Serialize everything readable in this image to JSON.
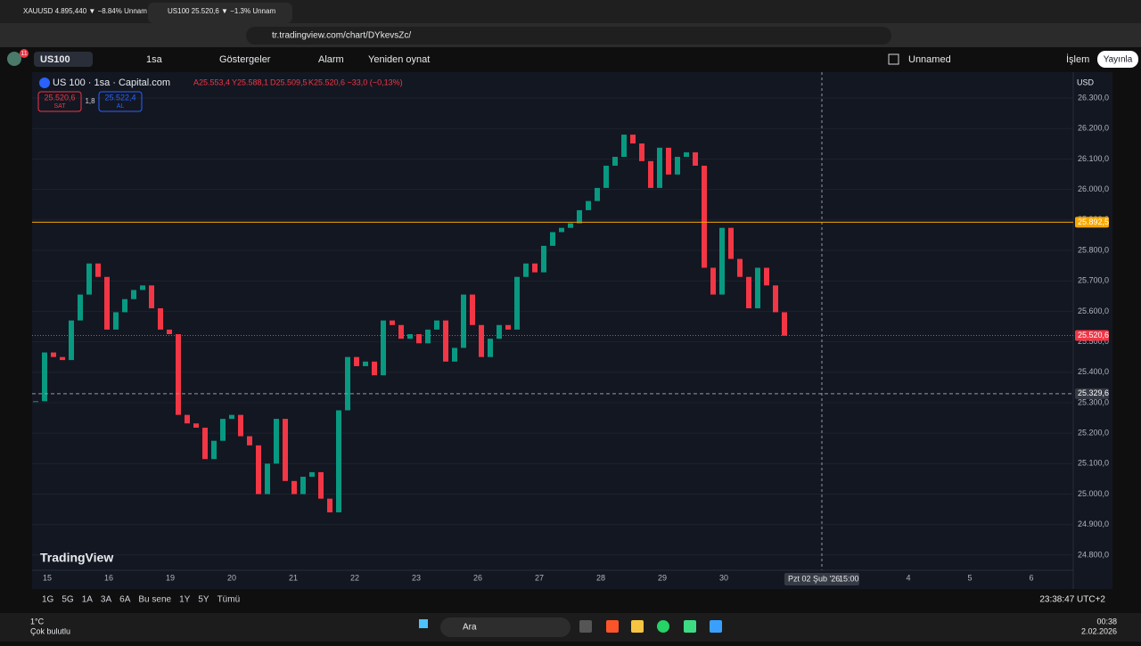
{
  "browser": {
    "tabs": [
      "XAUUSD 4.895,440 ▼ −8.84% Unnam",
      "US100 25.520,6 ▼ −1.3% Unnam"
    ],
    "url": "tr.tradingview.com/chart/DYkevsZc/"
  },
  "toolbar": {
    "badge": "11",
    "symbol": "US100",
    "interval": "1sa",
    "indicators": "Göstergeler",
    "alert": "Alarm",
    "replay": "Yeniden oynat",
    "layout": "Unnamed",
    "trade": "İşlem",
    "publish": "Yayınla"
  },
  "chart": {
    "type": "candlestick",
    "legend": "US 100 · 1sa · Capital.com",
    "ohlc": [
      "A25.553,4",
      "Y25.588,1",
      "D25.509,5",
      "K25.520,6 −33,0 (−0,13%)"
    ],
    "sell": {
      "price": "25.520,6",
      "label": "SAT"
    },
    "spread": "1,8",
    "buy": {
      "price": "25.522,4",
      "label": "AL"
    },
    "currency": "USD",
    "watermark": "TradingView",
    "ylim": [
      24750,
      26385
    ],
    "yticks": [
      {
        "value": 26300,
        "label": "26.300,0"
      },
      {
        "value": 26200,
        "label": "26.200,0"
      },
      {
        "value": 26100,
        "label": "26.100,0"
      },
      {
        "value": 26000,
        "label": "26.000,0"
      },
      {
        "value": 25900,
        "label": "25.900,0"
      },
      {
        "value": 25800,
        "label": "25.800,0"
      },
      {
        "value": 25700,
        "label": "25.700,0"
      },
      {
        "value": 25600,
        "label": "25.600,0"
      },
      {
        "value": 25500,
        "label": "25.500,0"
      },
      {
        "value": 25400,
        "label": "25.400,0"
      },
      {
        "value": 25300,
        "label": "25.300,0"
      },
      {
        "value": 25200,
        "label": "25.200,0"
      },
      {
        "value": 25100,
        "label": "25.100,0"
      },
      {
        "value": 25000,
        "label": "25.000,0"
      },
      {
        "value": 24900,
        "label": "24.900,0"
      },
      {
        "value": 24800,
        "label": "24.800,0"
      }
    ],
    "categories": [
      "15",
      "16",
      "19",
      "20",
      "21",
      "22",
      "23",
      "26",
      "27",
      "28",
      "29",
      "30",
      null,
      null,
      "4",
      "5",
      "6"
    ],
    "close": [
      25305,
      25465,
      25450,
      25440,
      25570,
      25655,
      25757,
      25713,
      25540,
      25597,
      25640,
      25670,
      25685,
      25610,
      25540,
      25525,
      25260,
      25232,
      25218,
      25115,
      25175,
      25247,
      25260,
      25190,
      25160,
      25000,
      25100,
      25247,
      25043,
      25000,
      25057,
      25072,
      24985,
      24940,
      25275,
      25450,
      25420,
      25435,
      25390,
      25570,
      25555,
      25510,
      25525,
      25495,
      25540,
      25570,
      25435,
      25480,
      25655,
      25555,
      25450,
      25510,
      25555,
      25540,
      25713,
      25757,
      25728,
      25815,
      25860,
      25874,
      25889,
      25932,
      25962,
      26005,
      26078,
      26107,
      26180,
      26151,
      26093,
      26005,
      26137,
      26049,
      26107,
      26122,
      26078,
      25743,
      25655,
      25874,
      25772,
      25713,
      25610,
      25743,
      25685,
      25597,
      25520
    ],
    "up_color": "#089981",
    "down_color": "#f23645",
    "price_lines": [
      {
        "value": 25892.5,
        "label": "25.892,5",
        "color": "#f7a600"
      },
      {
        "value": 25520.6,
        "label": "25.520,6",
        "color": "#f23645"
      },
      {
        "value": 25329.6,
        "label": "25.329,6",
        "color": "#9598a1"
      }
    ],
    "crosshair": {
      "date": "Pzt 02 Şub '26",
      "time": "15:00"
    }
  },
  "bottom_bar": {
    "ranges": [
      "1G",
      "5G",
      "1A",
      "3A",
      "6A",
      "Bu sene",
      "1Y",
      "5Y",
      "Tümü"
    ],
    "clock": "23:38:47 UTC+2"
  },
  "taskbar": {
    "temperature": "1°C",
    "weather": "Çok bulutlu",
    "search": "Ara",
    "time": "00:38",
    "date": "2.02.2026"
  }
}
